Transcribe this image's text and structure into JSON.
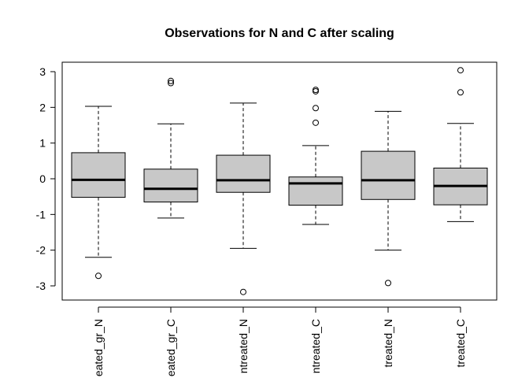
{
  "chart_data": {
    "type": "boxplot",
    "title": "Observations for N and C after scaling",
    "xlabel": "",
    "ylabel": "",
    "ylim": [
      -3.35,
      3.15
    ],
    "yticks": [
      -3,
      -2,
      -1,
      0,
      1,
      2,
      3
    ],
    "grid": false,
    "categories": [
      "treated_gr_N",
      "treated_gr_C",
      "untreated_N",
      "untreated_C",
      "treated_N",
      "treated_C"
    ],
    "category_labels_visible": [
      "eated_gr_N",
      "eated_gr_C",
      "ntreated_N",
      "ntreated_C",
      "treated_N",
      "treated_C"
    ],
    "series": [
      {
        "category": "treated_gr_N",
        "whisker_low": -2.2,
        "q1": -0.52,
        "median": -0.03,
        "q3": 0.73,
        "whisker_high": 2.03,
        "outliers": [
          -2.72
        ]
      },
      {
        "category": "treated_gr_C",
        "whisker_low": -1.1,
        "q1": -0.65,
        "median": -0.28,
        "q3": 0.27,
        "whisker_high": 1.54,
        "outliers": [
          2.68,
          2.74
        ]
      },
      {
        "category": "untreated_N",
        "whisker_low": -1.95,
        "q1": -0.38,
        "median": -0.04,
        "q3": 0.66,
        "whisker_high": 2.12,
        "outliers": [
          -3.17
        ]
      },
      {
        "category": "untreated_C",
        "whisker_low": -1.28,
        "q1": -0.74,
        "median": -0.13,
        "q3": 0.05,
        "whisker_high": 0.93,
        "outliers": [
          1.57,
          1.98,
          2.45,
          2.49
        ]
      },
      {
        "category": "treated_N",
        "whisker_low": -2.0,
        "q1": -0.58,
        "median": -0.04,
        "q3": 0.77,
        "whisker_high": 1.89,
        "outliers": [
          -2.92
        ]
      },
      {
        "category": "treated_C",
        "whisker_low": -1.2,
        "q1": -0.73,
        "median": -0.2,
        "q3": 0.3,
        "whisker_high": 1.55,
        "outliers": [
          2.42,
          3.04
        ]
      }
    ],
    "box_fill": "#c8c8c8",
    "line_color": "#000000"
  }
}
